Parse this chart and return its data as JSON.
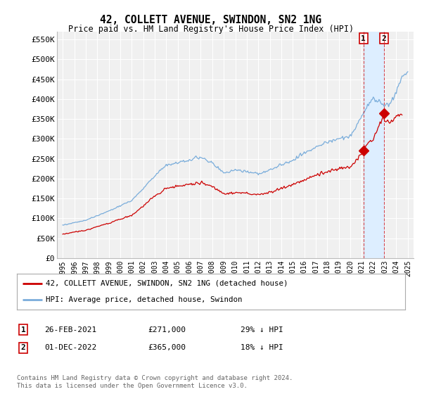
{
  "title": "42, COLLETT AVENUE, SWINDON, SN2 1NG",
  "subtitle": "Price paid vs. HM Land Registry's House Price Index (HPI)",
  "ylabel_ticks": [
    "£0",
    "£50K",
    "£100K",
    "£150K",
    "£200K",
    "£250K",
    "£300K",
    "£350K",
    "£400K",
    "£450K",
    "£500K",
    "£550K"
  ],
  "ytick_values": [
    0,
    50000,
    100000,
    150000,
    200000,
    250000,
    300000,
    350000,
    400000,
    450000,
    500000,
    550000
  ],
  "ylim": [
    0,
    570000
  ],
  "hpi_color": "#7aaddb",
  "price_color": "#cc0000",
  "legend_label_price": "42, COLLETT AVENUE, SWINDON, SN2 1NG (detached house)",
  "legend_label_hpi": "HPI: Average price, detached house, Swindon",
  "transaction1_date": "26-FEB-2021",
  "transaction1_price": "£271,000",
  "transaction1_hpi": "29% ↓ HPI",
  "transaction2_date": "01-DEC-2022",
  "transaction2_price": "£365,000",
  "transaction2_hpi": "18% ↓ HPI",
  "footer": "Contains HM Land Registry data © Crown copyright and database right 2024.\nThis data is licensed under the Open Government Licence v3.0.",
  "bg_color": "#ffffff",
  "plot_bg_color": "#f0f0f0",
  "grid_color": "#ffffff",
  "transaction1_year": 2021.15,
  "transaction2_year": 2022.92,
  "transaction1_value": 271000,
  "transaction2_value": 365000,
  "shade_color": "#ddeeff"
}
